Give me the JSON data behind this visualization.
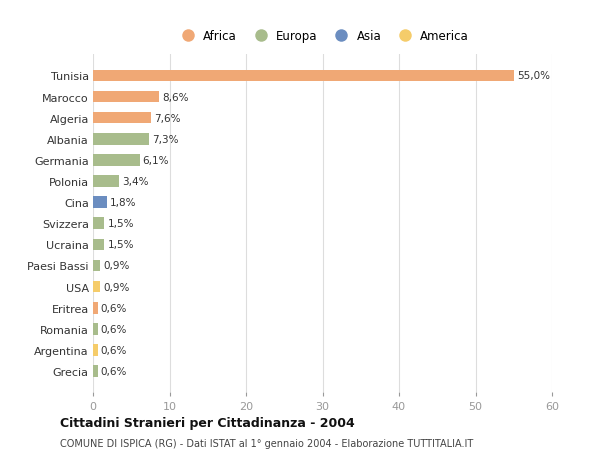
{
  "countries": [
    "Tunisia",
    "Marocco",
    "Algeria",
    "Albania",
    "Germania",
    "Polonia",
    "Cina",
    "Svizzera",
    "Ucraina",
    "Paesi Bassi",
    "USA",
    "Eritrea",
    "Romania",
    "Argentina",
    "Grecia"
  ],
  "values": [
    55.0,
    8.6,
    7.6,
    7.3,
    6.1,
    3.4,
    1.8,
    1.5,
    1.5,
    0.9,
    0.9,
    0.6,
    0.6,
    0.6,
    0.6
  ],
  "labels": [
    "55,0%",
    "8,6%",
    "7,6%",
    "7,3%",
    "6,1%",
    "3,4%",
    "1,8%",
    "1,5%",
    "1,5%",
    "0,9%",
    "0,9%",
    "0,6%",
    "0,6%",
    "0,6%",
    "0,6%"
  ],
  "continents": [
    "Africa",
    "Africa",
    "Africa",
    "Europa",
    "Europa",
    "Europa",
    "Asia",
    "Europa",
    "Europa",
    "Europa",
    "America",
    "Africa",
    "Europa",
    "America",
    "Europa"
  ],
  "continent_colors": {
    "Africa": "#F0A875",
    "Europa": "#A8BC8C",
    "Asia": "#6B8DC0",
    "America": "#F5CC6A"
  },
  "legend_order": [
    "Africa",
    "Europa",
    "Asia",
    "America"
  ],
  "title": "Cittadini Stranieri per Cittadinanza - 2004",
  "subtitle": "COMUNE DI ISPICA (RG) - Dati ISTAT al 1° gennaio 2004 - Elaborazione TUTTITALIA.IT",
  "xlim": [
    0,
    60
  ],
  "xticks": [
    0,
    10,
    20,
    30,
    40,
    50,
    60
  ],
  "background_color": "#ffffff",
  "grid_color": "#dddddd"
}
